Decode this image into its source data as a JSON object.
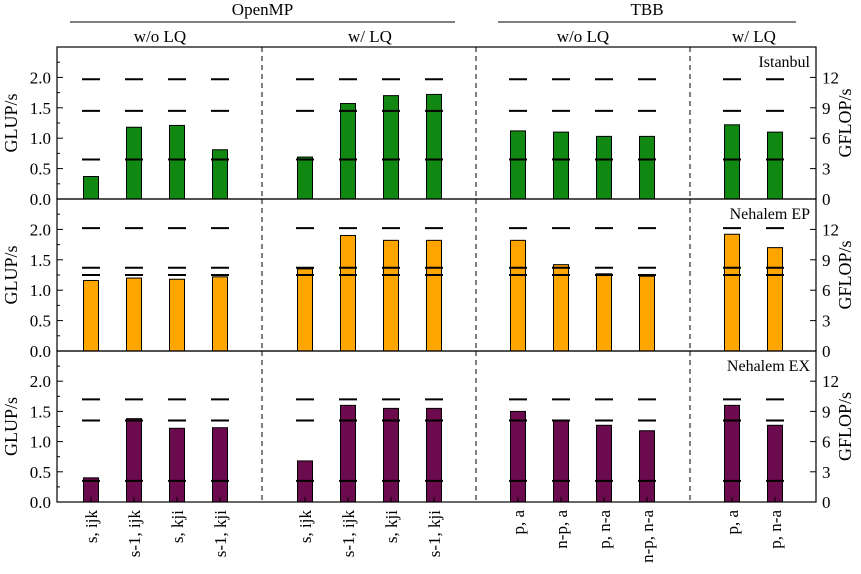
{
  "chart_data": {
    "type": "bar",
    "groups": [
      {
        "label": "OpenMP",
        "subgroups": [
          "w/o LQ",
          "w/ LQ"
        ]
      },
      {
        "label": "TBB",
        "subgroups": [
          "w/o LQ",
          "w/ LQ"
        ]
      }
    ],
    "categories": [
      "s, ijk",
      "s-1, ijk",
      "s, kji",
      "s-1, kji",
      "s, ijk",
      "s-1, ijk",
      "s, kji",
      "s-1, kji",
      "p, a",
      "n-p, a",
      "p, n-a",
      "n-p, n-a",
      "p, a",
      "p, n-a"
    ],
    "ylabel": "GLUP/s",
    "ylabel_right": "GFLOP/s",
    "ylim": [
      0,
      2.5
    ],
    "yticks": [
      "0.0",
      "0.5",
      "1.0",
      "1.5",
      "2.0"
    ],
    "ylim_right": [
      0,
      15
    ],
    "yticks_right": [
      "0",
      "3",
      "6",
      "9",
      "12"
    ],
    "panels": [
      {
        "label": "Istanbul",
        "color": "#118811",
        "values": [
          0.37,
          1.18,
          1.21,
          0.81,
          0.69,
          1.57,
          1.7,
          1.72,
          1.12,
          1.1,
          1.03,
          1.03,
          1.22,
          1.1
        ],
        "reference_lines": [
          0.65,
          1.45,
          1.97
        ]
      },
      {
        "label": "Nehalem EP",
        "color": "#ffa500",
        "values": [
          1.16,
          1.2,
          1.18,
          1.22,
          1.35,
          1.9,
          1.82,
          1.82,
          1.82,
          1.42,
          1.27,
          1.23,
          1.92,
          1.7
        ],
        "reference_lines": [
          1.25,
          1.37,
          2.02
        ]
      },
      {
        "label": "Nehalem EX",
        "color": "#6b0a4c",
        "values": [
          0.4,
          1.38,
          1.22,
          1.23,
          0.68,
          1.6,
          1.55,
          1.55,
          1.5,
          1.35,
          1.27,
          1.18,
          1.6,
          1.27
        ],
        "reference_lines": [
          0.35,
          1.35,
          1.7
        ]
      }
    ]
  }
}
